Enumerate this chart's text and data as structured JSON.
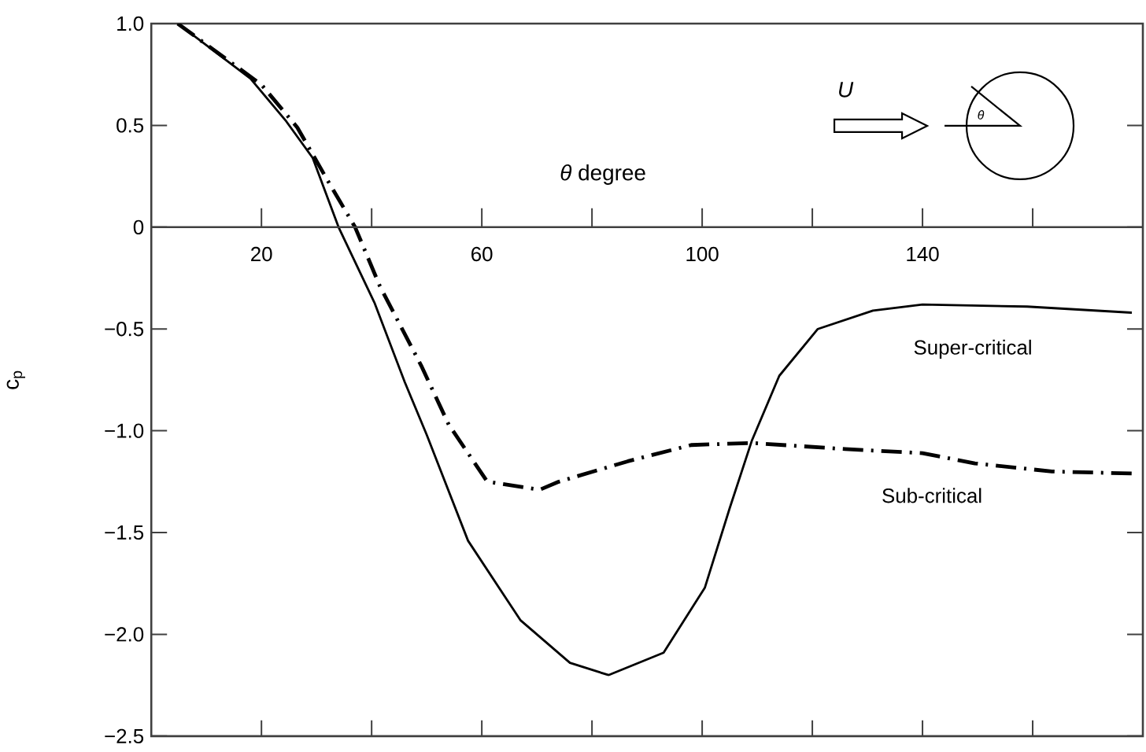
{
  "chart_data": {
    "type": "line",
    "xlabel": "*θ* degree",
    "ylabel": "c$_{p}$",
    "xlim": [
      0,
      180
    ],
    "ylim": [
      -2.5,
      1.0
    ],
    "xticks": [
      20,
      {
        "value": 40,
        "label": null
      },
      60,
      {
        "value": 80,
        "label": null
      },
      100,
      {
        "value": 120,
        "label": null
      },
      140,
      {
        "value": 160,
        "label": null
      }
    ],
    "yticks": [
      {
        "value": -2.5,
        "label": "−2.5"
      },
      {
        "value": -2.0,
        "label": "−2.0"
      },
      {
        "value": -1.5,
        "label": "−1.5"
      },
      {
        "value": -1.0,
        "label": "−1.0"
      },
      {
        "value": -0.5,
        "label": "−0.5"
      },
      0,
      0.5,
      {
        "value": 1.0,
        "label": "1.0"
      }
    ],
    "series": [
      {
        "name": "Super-critical",
        "color": "#000000",
        "line_style": "solid",
        "x": [
          4.8,
          18,
          24.5,
          29.3,
          34,
          40.5,
          46,
          50,
          57.5,
          67,
          76,
          83,
          93,
          100.5,
          105,
          109,
          114,
          121,
          131,
          140,
          159,
          178
        ],
        "values": [
          1.0,
          0.73,
          0.52,
          0.34,
          0,
          -0.37,
          -0.76,
          -1.02,
          -1.54,
          -1.93,
          -2.14,
          -2.2,
          -2.09,
          -1.77,
          -1.38,
          -1.05,
          -0.73,
          -0.5,
          -0.41,
          -0.38,
          -0.39,
          -0.42
        ]
      },
      {
        "name": "Sub-critical",
        "color": "#000000",
        "line_style": "dashdot",
        "x": [
          4.8,
          20,
          26.5,
          32,
          37,
          41.5,
          49,
          54,
          61,
          70.5,
          74,
          86.5,
          98,
          109,
          126,
          140,
          149.5,
          163.5,
          178
        ],
        "values": [
          1.0,
          0.7,
          0.49,
          0.23,
          0,
          -0.29,
          -0.68,
          -0.97,
          -1.25,
          -1.29,
          -1.25,
          -1.15,
          -1.07,
          -1.06,
          -1.09,
          -1.11,
          -1.16,
          -1.2,
          -1.21
        ]
      }
    ],
    "annotations": [
      "U",
      "θ"
    ]
  }
}
